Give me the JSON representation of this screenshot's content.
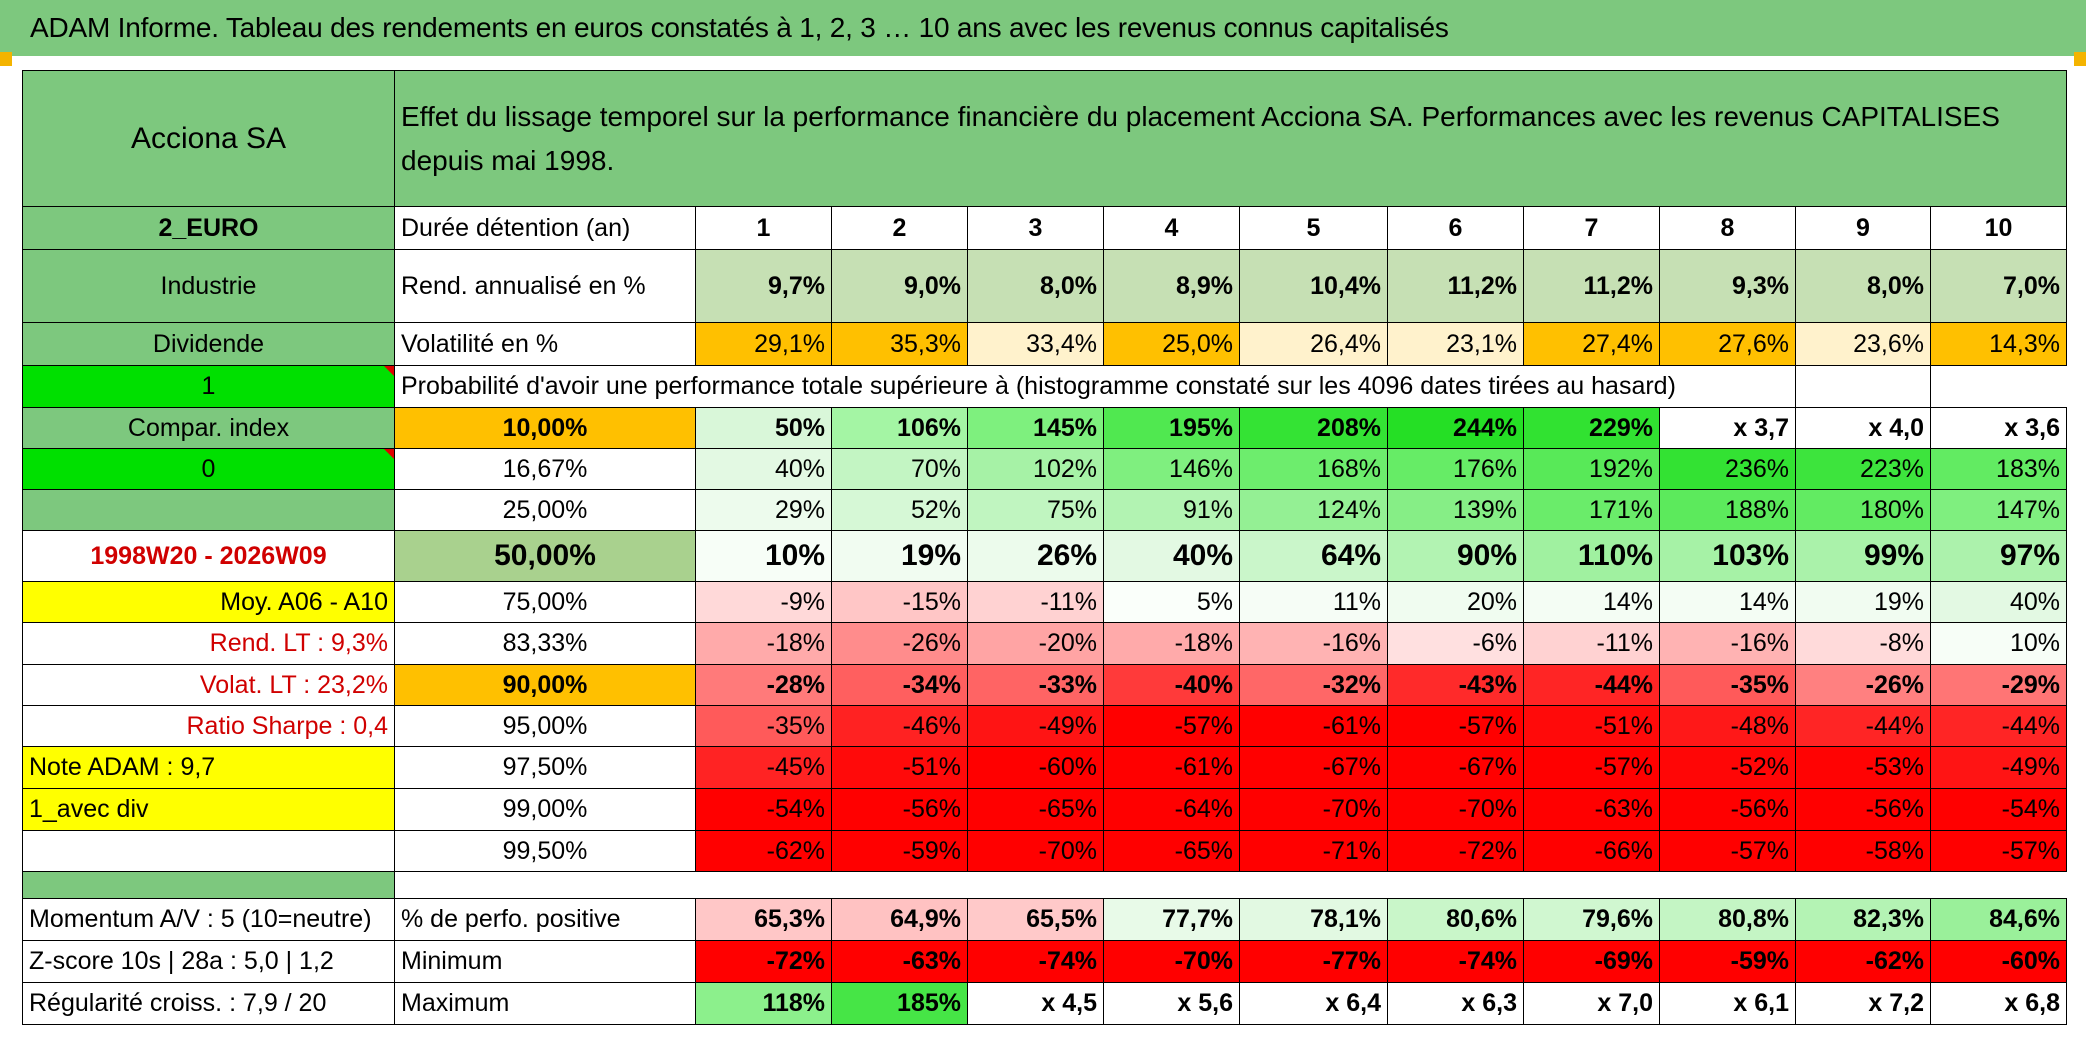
{
  "title": "ADAM Informe. Tableau des rendements en euros constatés à 1, 2, 3 … 10 ans avec les revenus connus capitalisés",
  "company": "Acciona SA",
  "headline": "Effet du lissage temporel sur la performance financière du placement Acciona SA. Performances avec les revenus CAPITALISES depuis mai 1998.",
  "side": {
    "currency": "2_EURO",
    "sector": "Industrie",
    "type": "Dividende",
    "flag1": "1",
    "compar": "Compar. index",
    "flag0": "0",
    "period": "1998W20 - 2026W09",
    "moy": "Moy. A06 - A10",
    "rend_lt": "Rend. LT :   9,3%",
    "volat_lt": "Volat. LT :   23,2%",
    "sharpe": "Ratio Sharpe :   0,4",
    "note": "Note ADAM : 9,7",
    "avec_div": "1_avec div",
    "momentum": "Momentum A/V : 5 (10=neutre)",
    "zscore": "Z-score 10s | 28a : 5,0 | 1,2",
    "regularite": "Régularité croiss. : 7,9 / 20"
  },
  "labels": {
    "duree": "Durée détention (an)",
    "rend": "Rend. annualisé en %",
    "volat": "Volatilité en %",
    "proba": "Probabilité d'avoir une performance totale supérieure à (histogramme constaté sur les 4096 dates tirées au hasard)",
    "perfo_pos": "% de perfo. positive",
    "minimum": "Minimum",
    "maximum": "Maximum"
  },
  "years": [
    "1",
    "2",
    "3",
    "4",
    "5",
    "6",
    "7",
    "8",
    "9",
    "10"
  ],
  "rend": [
    "9,7%",
    "9,0%",
    "8,0%",
    "8,9%",
    "10,4%",
    "11,2%",
    "11,2%",
    "9,3%",
    "8,0%",
    "7,0%"
  ],
  "volat": [
    "29,1%",
    "35,3%",
    "33,4%",
    "25,0%",
    "26,4%",
    "23,1%",
    "27,4%",
    "27,6%",
    "23,6%",
    "14,3%"
  ],
  "volat_colors": [
    "#ffc000",
    "#ffc000",
    "#fff2cc",
    "#ffc000",
    "#fff2cc",
    "#fff2cc",
    "#ffc000",
    "#ffc000",
    "#fff2cc",
    "#ffc000"
  ],
  "prob_rows": [
    {
      "pct": "10,00%",
      "pct_bg": "#ffc000",
      "bold": true,
      "big": false,
      "values": [
        "50%",
        "106%",
        "145%",
        "195%",
        "208%",
        "244%",
        "229%",
        "x 3,7",
        "x 4,0",
        "x 3,6"
      ],
      "colors": [
        "#d9f7d9",
        "#a4f5a4",
        "#7ef07e",
        "#50e850",
        "#34e334",
        "#25df25",
        "#31e231",
        "#ffffff",
        "#ffffff",
        "#ffffff"
      ]
    },
    {
      "pct": "16,67%",
      "pct_bg": "#ffffff",
      "bold": false,
      "big": false,
      "values": [
        "40%",
        "70%",
        "102%",
        "146%",
        "168%",
        "176%",
        "192%",
        "236%",
        "223%",
        "183%"
      ],
      "colors": [
        "#e3f9e3",
        "#c3f5c3",
        "#a6f2a6",
        "#7fef7f",
        "#6ded6d",
        "#66ec66",
        "#58e958",
        "#33e233",
        "#3de43d",
        "#62eb62"
      ]
    },
    {
      "pct": "25,00%",
      "pct_bg": "#ffffff",
      "bold": false,
      "big": false,
      "values": [
        "29%",
        "52%",
        "75%",
        "91%",
        "124%",
        "139%",
        "171%",
        "188%",
        "180%",
        "147%"
      ],
      "colors": [
        "#edfbed",
        "#d6f8d6",
        "#c0f5c0",
        "#b2f3b2",
        "#94f094",
        "#86ee86",
        "#6aec6a",
        "#5cea5c",
        "#62eb62",
        "#7fef7f"
      ]
    },
    {
      "pct": "50,00%",
      "pct_bg": "#a9d18e",
      "bold": true,
      "big": true,
      "values": [
        "10%",
        "19%",
        "26%",
        "40%",
        "64%",
        "90%",
        "110%",
        "103%",
        "99%",
        "97%"
      ],
      "colors": [
        "#f7fef7",
        "#f1fcf1",
        "#ecfbec",
        "#e3f9e3",
        "#caf6ca",
        "#b2f3b2",
        "#a0f1a0",
        "#a6f2a6",
        "#aaf2aa",
        "#acf2ac"
      ]
    },
    {
      "pct": "75,00%",
      "pct_bg": "#ffffff",
      "bold": false,
      "big": false,
      "values": [
        "-9%",
        "-15%",
        "-11%",
        "5%",
        "11%",
        "20%",
        "14%",
        "14%",
        "19%",
        "40%"
      ],
      "colors": [
        "#ffd9d9",
        "#ffc6c6",
        "#ffd2d2",
        "#fafffa",
        "#f6fdf6",
        "#f0fcf0",
        "#f4fdf4",
        "#f4fdf4",
        "#f1fcf1",
        "#e3f9e3"
      ]
    },
    {
      "pct": "83,33%",
      "pct_bg": "#ffffff",
      "bold": false,
      "big": false,
      "values": [
        "-18%",
        "-26%",
        "-20%",
        "-18%",
        "-16%",
        "-6%",
        "-11%",
        "-16%",
        "-8%",
        "10%"
      ],
      "colors": [
        "#ffaaaa",
        "#ff8c8c",
        "#ffa4a4",
        "#ffaaaa",
        "#ffb3b3",
        "#ffe0e0",
        "#ffd2d2",
        "#ffb3b3",
        "#ffdada",
        "#f7fef7"
      ]
    },
    {
      "pct": "90,00%",
      "pct_bg": "#ffc000",
      "bold": true,
      "big": false,
      "values": [
        "-28%",
        "-34%",
        "-33%",
        "-40%",
        "-32%",
        "-43%",
        "-44%",
        "-35%",
        "-26%",
        "-29%"
      ],
      "colors": [
        "#ff7a7a",
        "#ff5f5f",
        "#ff6464",
        "#ff3a3a",
        "#ff6767",
        "#ff2a2a",
        "#ff2525",
        "#ff5a5a",
        "#ff8080",
        "#ff7575"
      ]
    },
    {
      "pct": "95,00%",
      "pct_bg": "#ffffff",
      "bold": false,
      "big": false,
      "values": [
        "-35%",
        "-46%",
        "-49%",
        "-57%",
        "-61%",
        "-57%",
        "-51%",
        "-48%",
        "-44%",
        "-44%"
      ],
      "colors": [
        "#ff5a5a",
        "#ff2222",
        "#ff1414",
        "#ff0000",
        "#ff0000",
        "#ff0000",
        "#ff0a0a",
        "#ff1818",
        "#ff2525",
        "#ff2525"
      ]
    },
    {
      "pct": "97,50%",
      "pct_bg": "#ffffff",
      "bold": false,
      "big": false,
      "values": [
        "-45%",
        "-51%",
        "-60%",
        "-61%",
        "-67%",
        "-67%",
        "-57%",
        "-52%",
        "-53%",
        "-49%"
      ],
      "colors": [
        "#ff2323",
        "#ff0a0a",
        "#ff0000",
        "#ff0000",
        "#ff0000",
        "#ff0000",
        "#ff0000",
        "#ff0606",
        "#ff0303",
        "#ff1414"
      ]
    },
    {
      "pct": "99,00%",
      "pct_bg": "#ffffff",
      "bold": false,
      "big": false,
      "values": [
        "-54%",
        "-56%",
        "-65%",
        "-64%",
        "-70%",
        "-70%",
        "-63%",
        "-56%",
        "-56%",
        "-54%"
      ],
      "colors": [
        "#ff0000",
        "#ff0000",
        "#ff0000",
        "#ff0000",
        "#ff0000",
        "#ff0000",
        "#ff0000",
        "#ff0000",
        "#ff0000",
        "#ff0000"
      ]
    },
    {
      "pct": "99,50%",
      "pct_bg": "#ffffff",
      "bold": false,
      "big": false,
      "values": [
        "-62%",
        "-59%",
        "-70%",
        "-65%",
        "-71%",
        "-72%",
        "-66%",
        "-57%",
        "-58%",
        "-57%"
      ],
      "colors": [
        "#ff0000",
        "#ff0000",
        "#ff0000",
        "#ff0000",
        "#ff0000",
        "#ff0000",
        "#ff0000",
        "#ff0000",
        "#ff0000",
        "#ff0000"
      ]
    }
  ],
  "perfo_pos": [
    "65,3%",
    "64,9%",
    "65,5%",
    "77,7%",
    "78,1%",
    "80,6%",
    "79,6%",
    "80,8%",
    "82,3%",
    "84,6%"
  ],
  "perfo_pos_colors": [
    "#ffc7c7",
    "#ffc2c2",
    "#ffc9c9",
    "#e8fae8",
    "#e2f9e2",
    "#c9f6c9",
    "#d0f7d0",
    "#c4f5c4",
    "#b4f3b4",
    "#9af09a"
  ],
  "minimum": [
    "-72%",
    "-63%",
    "-74%",
    "-70%",
    "-77%",
    "-74%",
    "-69%",
    "-59%",
    "-62%",
    "-60%"
  ],
  "maximum": [
    "118%",
    "185%",
    "x 4,5",
    "x 5,6",
    "x 6,4",
    "x 6,3",
    "x 7,0",
    "x 6,1",
    "x 7,2",
    "x 6,8"
  ],
  "maximum_colors": [
    "#8cf08c",
    "#46e546",
    "#ffffff",
    "#ffffff",
    "#ffffff",
    "#ffffff",
    "#ffffff",
    "#ffffff",
    "#ffffff",
    "#ffffff"
  ],
  "colors": {
    "header_green": "#7dc87e",
    "side_green": "#7dc87e",
    "bright_green": "#00e000",
    "yellow": "#ffff00",
    "orange": "#ffc000",
    "light_green": "#c6e0b4",
    "red_text": "#d00000",
    "min_red": "#ff0000"
  }
}
